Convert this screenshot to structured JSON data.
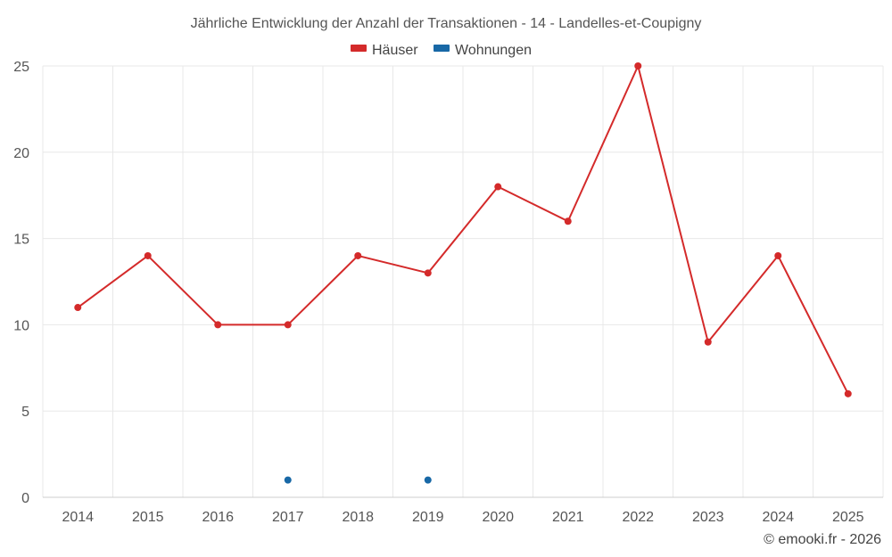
{
  "chart_data": {
    "type": "line",
    "title": "Jährliche Entwicklung der Anzahl der Transaktionen - 14 - Landelles-et-Coupigny",
    "x": [
      "2014",
      "2015",
      "2016",
      "2017",
      "2018",
      "2019",
      "2020",
      "2021",
      "2022",
      "2023",
      "2024",
      "2025"
    ],
    "ylim": [
      0,
      25
    ],
    "yticks": [
      0,
      5,
      10,
      15,
      20,
      25
    ],
    "grid": true,
    "legend_position": "top-center",
    "series": [
      {
        "name": "Häuser",
        "color": "#d42a2a",
        "style": "line-with-markers",
        "values": [
          11,
          14,
          10,
          10,
          14,
          13,
          18,
          16,
          25,
          9,
          14,
          6
        ]
      },
      {
        "name": "Wohnungen",
        "color": "#1868a6",
        "style": "markers-only",
        "values": [
          null,
          null,
          null,
          1,
          null,
          1,
          null,
          null,
          null,
          null,
          null,
          null
        ]
      }
    ]
  },
  "credit": "© emooki.fr - 2026"
}
